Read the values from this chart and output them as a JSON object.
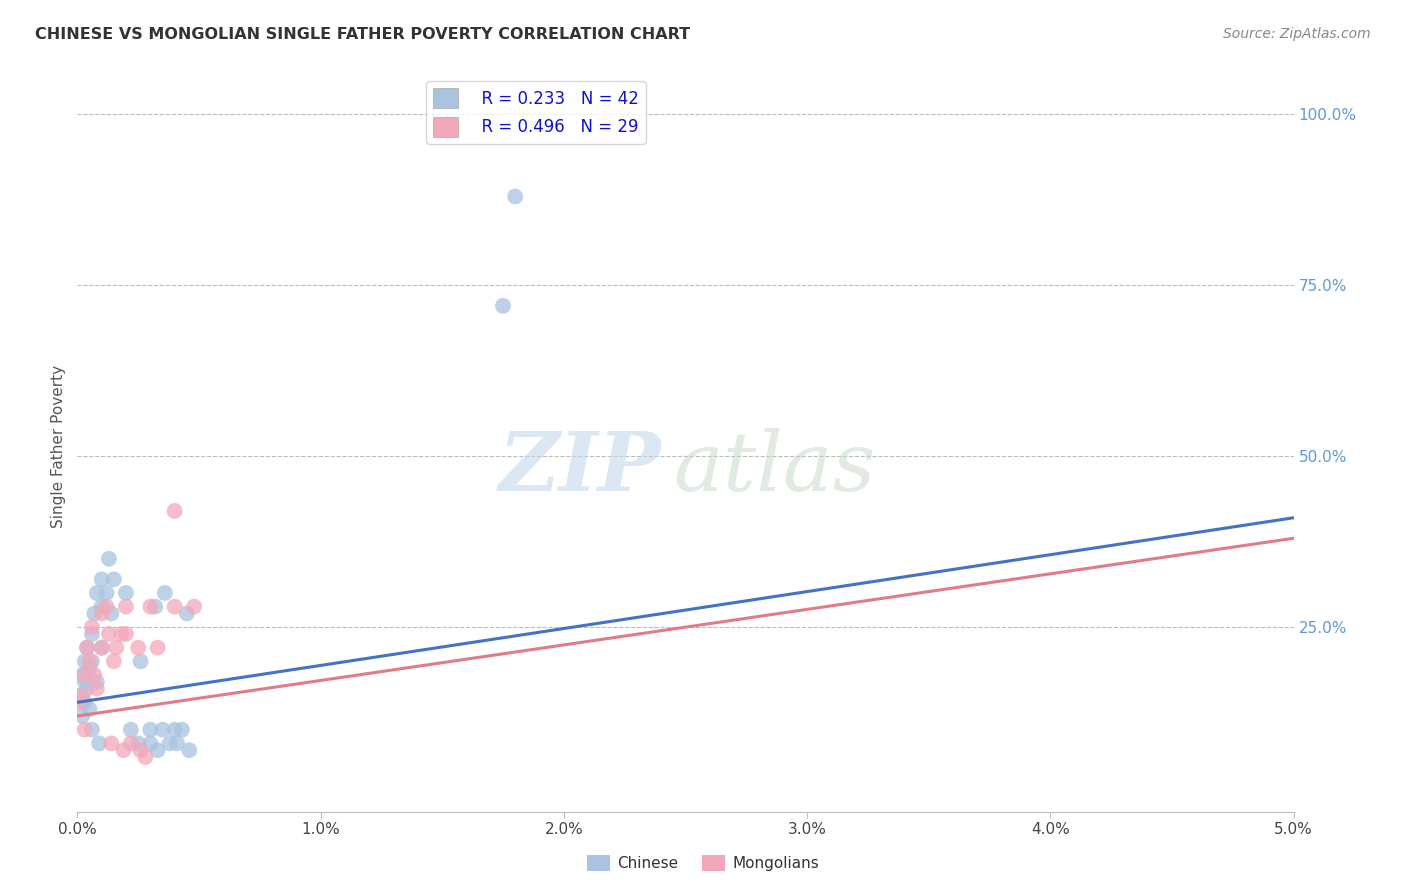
{
  "title": "CHINESE VS MONGOLIAN SINGLE FATHER POVERTY CORRELATION CHART",
  "source": "Source: ZipAtlas.com",
  "ylabel": "Single Father Poverty",
  "xlim": [
    0.0,
    0.05
  ],
  "ylim": [
    -0.02,
    1.05
  ],
  "xtick_labels": [
    "0.0%",
    "1.0%",
    "2.0%",
    "3.0%",
    "4.0%",
    "5.0%"
  ],
  "xtick_vals": [
    0.0,
    0.01,
    0.02,
    0.03,
    0.04,
    0.05
  ],
  "ytick_labels_right": [
    "100.0%",
    "75.0%",
    "50.0%",
    "25.0%"
  ],
  "ytick_vals_right": [
    1.0,
    0.75,
    0.5,
    0.25
  ],
  "chinese_R": 0.233,
  "chinese_N": 42,
  "mongolian_R": 0.496,
  "mongolian_N": 29,
  "chinese_color": "#a8c4e0",
  "mongolian_color": "#f4a7b9",
  "trendline_chinese_color": "#4472C4",
  "trendline_mongolian_color": "#e07b8a",
  "background_color": "#ffffff",
  "grid_color": "#bbbbbb",
  "chinese_x": [
    0.0001,
    0.0002,
    0.0002,
    0.0003,
    0.0003,
    0.0003,
    0.0004,
    0.0004,
    0.0005,
    0.0005,
    0.0006,
    0.0006,
    0.0006,
    0.0007,
    0.0008,
    0.0008,
    0.0009,
    0.001,
    0.001,
    0.001,
    0.0012,
    0.0013,
    0.0014,
    0.0015,
    0.002,
    0.0022,
    0.0025,
    0.0026,
    0.003,
    0.003,
    0.0032,
    0.0033,
    0.0035,
    0.0036,
    0.0038,
    0.004,
    0.0041,
    0.0043,
    0.0045,
    0.0046,
    0.018,
    0.0175
  ],
  "chinese_y": [
    0.15,
    0.18,
    0.12,
    0.2,
    0.17,
    0.14,
    0.22,
    0.16,
    0.19,
    0.13,
    0.24,
    0.2,
    0.1,
    0.27,
    0.3,
    0.17,
    0.08,
    0.28,
    0.22,
    0.32,
    0.3,
    0.35,
    0.27,
    0.32,
    0.3,
    0.1,
    0.08,
    0.2,
    0.1,
    0.08,
    0.28,
    0.07,
    0.1,
    0.3,
    0.08,
    0.1,
    0.08,
    0.1,
    0.27,
    0.07,
    0.88,
    0.72
  ],
  "mongolian_x": [
    0.0001,
    0.0002,
    0.0003,
    0.0003,
    0.0004,
    0.0005,
    0.0006,
    0.0007,
    0.0008,
    0.001,
    0.001,
    0.0012,
    0.0013,
    0.0014,
    0.0015,
    0.0016,
    0.0018,
    0.0019,
    0.002,
    0.002,
    0.0022,
    0.0025,
    0.0026,
    0.0028,
    0.003,
    0.0033,
    0.004,
    0.004,
    0.0048
  ],
  "mongolian_y": [
    0.14,
    0.15,
    0.18,
    0.1,
    0.22,
    0.2,
    0.25,
    0.18,
    0.16,
    0.27,
    0.22,
    0.28,
    0.24,
    0.08,
    0.2,
    0.22,
    0.24,
    0.07,
    0.28,
    0.24,
    0.08,
    0.22,
    0.07,
    0.06,
    0.28,
    0.22,
    0.28,
    0.42,
    0.28
  ],
  "trendline_chinese_x0": 0.0,
  "trendline_chinese_y0": 0.14,
  "trendline_chinese_x1": 0.05,
  "trendline_chinese_y1": 0.41,
  "trendline_mongolian_x0": 0.0,
  "trendline_mongolian_y0": 0.12,
  "trendline_mongolian_x1": 0.05,
  "trendline_mongolian_y1": 0.38
}
